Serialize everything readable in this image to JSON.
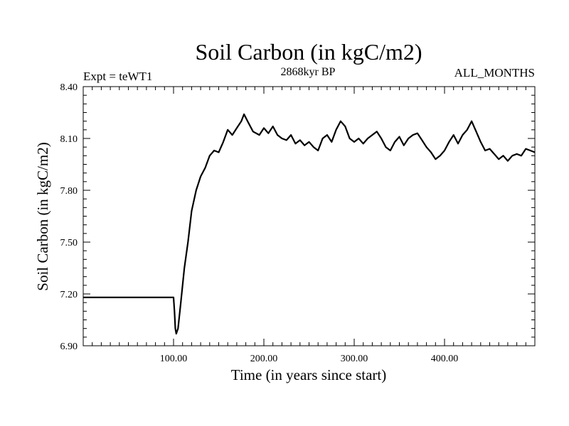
{
  "chart_data": {
    "type": "line",
    "title": "Soil Carbon (in kgC/m2)",
    "subtitle_left": "Expt = teWT1",
    "subtitle_center": "2868kyr BP",
    "subtitle_right": "ALL_MONTHS",
    "xlabel": "Time (in years since start)",
    "ylabel": "Soil Carbon (in kgC/m2)",
    "xlim": [
      0,
      500
    ],
    "ylim": [
      6.9,
      8.4
    ],
    "x_ticks": [
      100,
      200,
      300,
      400
    ],
    "x_tick_labels": [
      "100.00",
      "200.00",
      "300.00",
      "400.00"
    ],
    "y_ticks": [
      6.9,
      7.2,
      7.5,
      7.8,
      8.1,
      8.4
    ],
    "y_tick_labels": [
      "6.90",
      "7.20",
      "7.50",
      "7.80",
      "8.10",
      "8.40"
    ],
    "grid": false,
    "series": [
      {
        "name": "Soil Carbon",
        "color": "#000000",
        "x": [
          0,
          100,
          101,
          102,
          103,
          105,
          108,
          112,
          116,
          120,
          125,
          130,
          135,
          140,
          145,
          150,
          155,
          160,
          165,
          170,
          175,
          178,
          182,
          188,
          195,
          200,
          205,
          210,
          215,
          220,
          225,
          230,
          235,
          240,
          245,
          250,
          255,
          260,
          265,
          270,
          275,
          280,
          285,
          290,
          295,
          300,
          305,
          310,
          315,
          320,
          325,
          330,
          335,
          340,
          345,
          350,
          355,
          360,
          365,
          370,
          375,
          380,
          385,
          390,
          395,
          400,
          405,
          410,
          415,
          420,
          425,
          430,
          435,
          440,
          445,
          450,
          455,
          460,
          465,
          470,
          475,
          480,
          485,
          490,
          495,
          500
        ],
        "values": [
          7.18,
          7.18,
          7.1,
          7.0,
          6.97,
          7.0,
          7.15,
          7.35,
          7.5,
          7.68,
          7.8,
          7.88,
          7.93,
          8.0,
          8.03,
          8.02,
          8.08,
          8.15,
          8.12,
          8.16,
          8.2,
          8.24,
          8.2,
          8.14,
          8.12,
          8.16,
          8.13,
          8.17,
          8.12,
          8.1,
          8.09,
          8.12,
          8.07,
          8.09,
          8.06,
          8.08,
          8.05,
          8.03,
          8.1,
          8.12,
          8.08,
          8.15,
          8.2,
          8.17,
          8.1,
          8.08,
          8.1,
          8.07,
          8.1,
          8.12,
          8.14,
          8.1,
          8.05,
          8.03,
          8.08,
          8.11,
          8.06,
          8.1,
          8.12,
          8.13,
          8.09,
          8.05,
          8.02,
          7.98,
          8.0,
          8.03,
          8.08,
          8.12,
          8.07,
          8.12,
          8.15,
          8.2,
          8.14,
          8.08,
          8.03,
          8.04,
          8.01,
          7.98,
          8.0,
          7.97,
          8.0,
          8.01,
          8.0,
          8.04,
          8.03,
          8.02
        ]
      }
    ]
  }
}
